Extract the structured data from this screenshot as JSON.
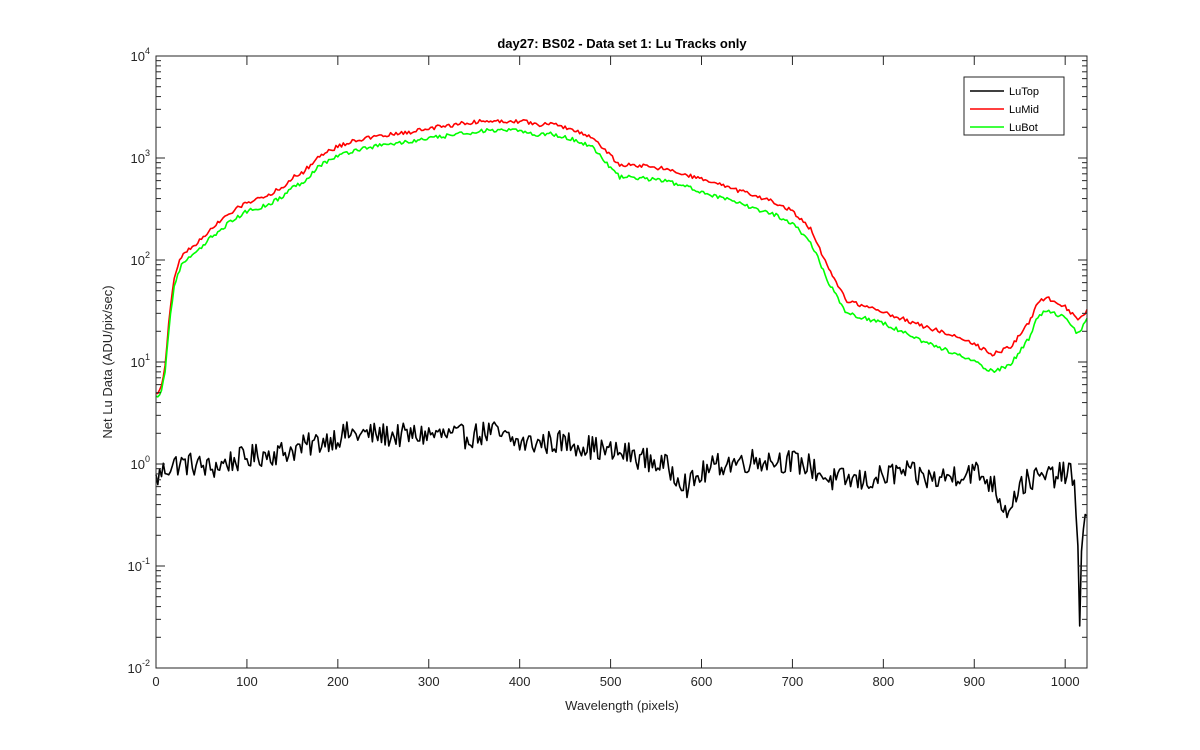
{
  "chart_data": {
    "type": "line",
    "title": "day27: BS02 - Data set 1: Lu Tracks only",
    "xlabel": "Wavelength (pixels)",
    "ylabel": "Net Lu Data (ADU/pix/sec)",
    "xlim": [
      0,
      1024
    ],
    "ylim": [
      0.01,
      10000
    ],
    "yscale": "log",
    "grid": false,
    "legend_position": "top-right",
    "x_ticks": [
      {
        "value": 0,
        "label": "0"
      },
      {
        "value": 100,
        "label": "100"
      },
      {
        "value": 200,
        "label": "200"
      },
      {
        "value": 300,
        "label": "300"
      },
      {
        "value": 400,
        "label": "400"
      },
      {
        "value": 500,
        "label": "500"
      },
      {
        "value": 600,
        "label": "600"
      },
      {
        "value": 700,
        "label": "700"
      },
      {
        "value": 800,
        "label": "800"
      },
      {
        "value": 900,
        "label": "900"
      },
      {
        "value": 1000,
        "label": "1000"
      }
    ],
    "y_ticks": [
      {
        "value": 0.01,
        "base": "10",
        "exp": "-2"
      },
      {
        "value": 0.1,
        "base": "10",
        "exp": "-1"
      },
      {
        "value": 1,
        "base": "10",
        "exp": "0"
      },
      {
        "value": 10,
        "base": "10",
        "exp": "1"
      },
      {
        "value": 100,
        "base": "10",
        "exp": "2"
      },
      {
        "value": 1000,
        "base": "10",
        "exp": "3"
      },
      {
        "value": 10000,
        "base": "10",
        "exp": "4"
      }
    ],
    "series": [
      {
        "name": "LuTop",
        "color": "#000000",
        "noise": 0.12,
        "x": [
          0,
          5,
          10,
          20,
          40,
          60,
          80,
          100,
          120,
          140,
          160,
          180,
          200,
          212,
          220,
          240,
          260,
          280,
          300,
          320,
          340,
          360,
          370,
          380,
          400,
          420,
          440,
          460,
          480,
          500,
          520,
          540,
          560,
          580,
          585,
          600,
          620,
          640,
          660,
          680,
          700,
          720,
          740,
          760,
          780,
          800,
          820,
          840,
          860,
          880,
          900,
          920,
          935,
          950,
          960,
          980,
          1000,
          1005,
          1010,
          1014,
          1016,
          1018,
          1020,
          1024
        ],
        "values": [
          0.7,
          0.8,
          0.9,
          1.0,
          1.0,
          0.9,
          1.05,
          1.15,
          1.25,
          1.3,
          1.45,
          1.65,
          1.85,
          2.0,
          1.95,
          1.95,
          1.9,
          1.9,
          1.95,
          1.9,
          1.85,
          2.0,
          2.1,
          1.85,
          1.6,
          1.6,
          1.65,
          1.6,
          1.45,
          1.3,
          1.25,
          1.1,
          0.95,
          0.7,
          0.6,
          0.8,
          1.0,
          1.05,
          1.1,
          1.1,
          1.05,
          0.95,
          0.7,
          0.7,
          0.68,
          0.75,
          0.85,
          0.75,
          0.7,
          0.8,
          0.85,
          0.65,
          0.35,
          0.6,
          0.7,
          0.75,
          0.8,
          0.9,
          0.6,
          0.12,
          0.03,
          0.15,
          0.3,
          0.28
        ]
      },
      {
        "name": "LuMid",
        "color": "#ff0000",
        "noise": 0.02,
        "x": [
          0,
          5,
          10,
          15,
          20,
          25,
          30,
          40,
          50,
          60,
          80,
          100,
          120,
          140,
          150,
          160,
          180,
          200,
          220,
          240,
          260,
          280,
          300,
          340,
          360,
          380,
          400,
          410,
          418,
          430,
          450,
          480,
          500,
          510,
          530,
          560,
          600,
          640,
          680,
          700,
          720,
          740,
          760,
          800,
          840,
          880,
          900,
          920,
          940,
          960,
          970,
          980,
          1000,
          1010,
          1014,
          1024
        ],
        "values": [
          4.8,
          5.5,
          9,
          30,
          65,
          95,
          115,
          135,
          160,
          200,
          280,
          370,
          420,
          520,
          650,
          700,
          1050,
          1300,
          1500,
          1600,
          1700,
          1800,
          1950,
          2200,
          2300,
          2300,
          2300,
          2250,
          2100,
          2200,
          2000,
          1600,
          1050,
          850,
          850,
          780,
          620,
          480,
          370,
          300,
          200,
          80,
          40,
          31,
          23,
          18,
          15,
          12,
          14,
          24,
          38,
          43,
          35,
          28,
          25,
          32
        ]
      },
      {
        "name": "LuBot",
        "color": "#00ff00",
        "noise": 0.02,
        "x": [
          0,
          5,
          10,
          15,
          20,
          25,
          30,
          40,
          50,
          60,
          80,
          100,
          120,
          140,
          150,
          160,
          180,
          200,
          220,
          240,
          260,
          280,
          300,
          340,
          360,
          380,
          400,
          410,
          418,
          430,
          450,
          480,
          500,
          510,
          530,
          560,
          600,
          640,
          680,
          700,
          720,
          740,
          760,
          800,
          840,
          880,
          900,
          920,
          940,
          960,
          970,
          980,
          1000,
          1010,
          1014,
          1024
        ],
        "values": [
          4.5,
          5,
          8,
          25,
          55,
          78,
          95,
          110,
          130,
          165,
          230,
          300,
          340,
          420,
          520,
          560,
          850,
          1050,
          1200,
          1300,
          1380,
          1450,
          1550,
          1750,
          1850,
          1850,
          1850,
          1800,
          1650,
          1750,
          1600,
          1300,
          800,
          650,
          640,
          600,
          470,
          360,
          280,
          230,
          150,
          60,
          30,
          24,
          16.5,
          12,
          10,
          8,
          9.5,
          17,
          28,
          32,
          27,
          21,
          19,
          26
        ]
      }
    ]
  }
}
